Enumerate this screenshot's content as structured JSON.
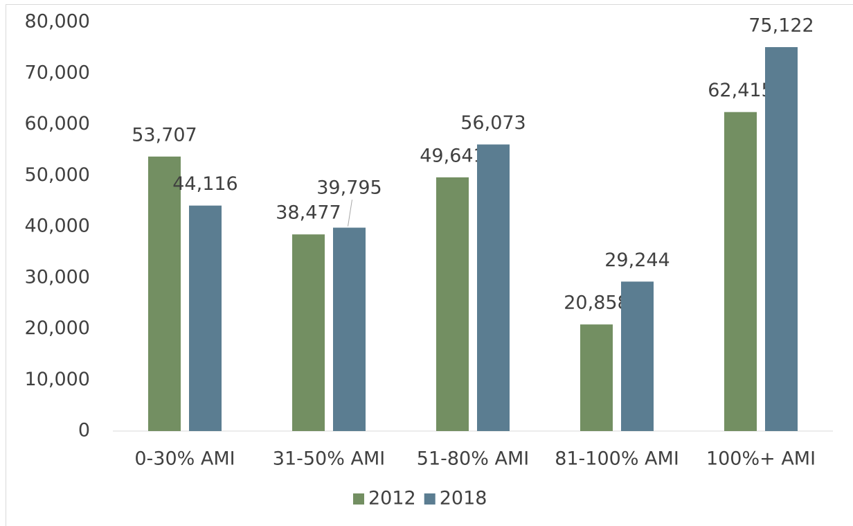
{
  "chart_data": {
    "type": "bar",
    "categories": [
      "0-30% AMI",
      "31-50% AMI",
      "51-80% AMI",
      "81-100% AMI",
      "100%+ AMI"
    ],
    "series": [
      {
        "name": "2012",
        "color": "#738f62",
        "values": [
          53707,
          38477,
          49641,
          20858,
          62415
        ],
        "value_labels": [
          "53,707",
          "38,477",
          "49,641",
          "20,858",
          "62,415"
        ]
      },
      {
        "name": "2018",
        "color": "#5b7d91",
        "values": [
          44116,
          39795,
          56073,
          29244,
          75122
        ],
        "value_labels": [
          "44,116",
          "39,795",
          "56,073",
          "29,244",
          "75,122"
        ]
      }
    ],
    "ylim": [
      0,
      80000
    ],
    "yticks": [
      0,
      {
        "value": 10000,
        "label": "10,000"
      },
      {
        "value": 20000,
        "label": "20,000"
      },
      {
        "value": 30000,
        "label": "30,000"
      },
      {
        "value": 40000,
        "label": "40,000"
      },
      {
        "value": 50000,
        "label": "50,000"
      },
      {
        "value": 60000,
        "label": "60,000"
      },
      {
        "value": 70000,
        "label": "70,000"
      },
      {
        "value": 80000,
        "label": "80,000"
      }
    ],
    "grid": false,
    "legend": "bottom"
  }
}
